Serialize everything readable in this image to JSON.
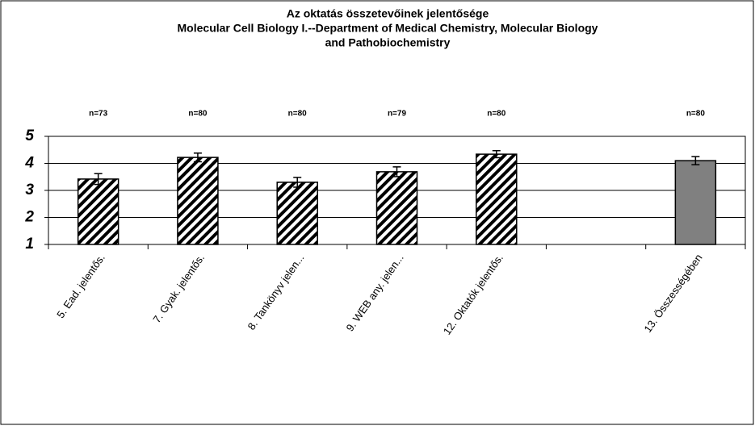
{
  "chart_data": {
    "type": "bar",
    "title": [
      "Az oktatás összetevőinek jelentősége",
      "Molecular Cell Biology I.--Department of Medical Chemistry, Molecular Biology",
      "and Pathobiochemistry"
    ],
    "categories": [
      "5. Ead. jelentős.",
      "7. Gyak. jelentős.",
      "8. Tankönyv jelen...",
      "9. WEB any. jelen...",
      "12. Oktatók jelentős.",
      null,
      "13. Összességében"
    ],
    "values": [
      3.42,
      4.22,
      3.3,
      3.69,
      4.34,
      null,
      4.1
    ],
    "errors": [
      0.2,
      0.16,
      0.18,
      0.18,
      0.13,
      null,
      0.15
    ],
    "annotations": [
      "n=73",
      "n=80",
      "n=80",
      "n=79",
      "n=80",
      null,
      "n=80"
    ],
    "bar_fills": [
      "hatch",
      "hatch",
      "hatch",
      "hatch",
      "hatch",
      null,
      "#808080"
    ],
    "ylim": [
      1,
      5
    ],
    "yticks": [
      1,
      2,
      3,
      4,
      5
    ],
    "grid": true
  }
}
